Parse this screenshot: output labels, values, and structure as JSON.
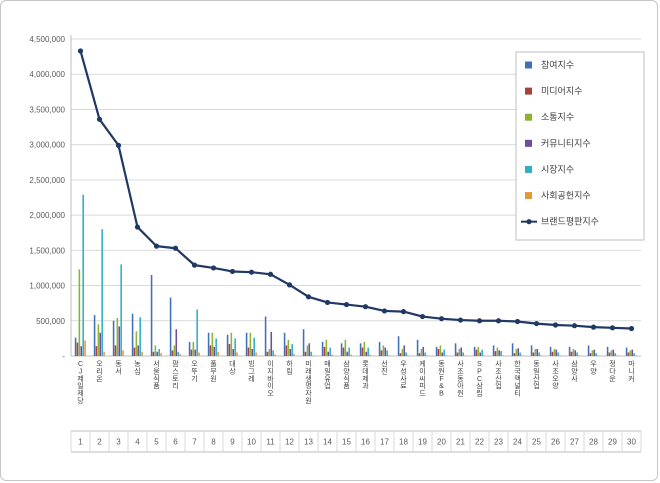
{
  "chart_data": {
    "type": "bar+line",
    "title": "",
    "xlabel": "",
    "ylabel": "",
    "grid": true,
    "legend_position": "right-top",
    "y_axis": {
      "min": 0,
      "max": 4500000,
      "step": 500000,
      "zero_label": "-"
    },
    "ranks": [
      1,
      2,
      3,
      4,
      5,
      6,
      7,
      8,
      9,
      10,
      11,
      12,
      13,
      14,
      15,
      16,
      17,
      18,
      19,
      20,
      21,
      22,
      23,
      24,
      25,
      26,
      27,
      28,
      29,
      30
    ],
    "categories": [
      "CJ제일제당",
      "오리온",
      "동서",
      "농심",
      "서울식품",
      "팜스토리",
      "오뚜기",
      "풀무원",
      "대상",
      "빙그레",
      "이지바이오",
      "하림",
      "미래생명자원",
      "매일유업",
      "삼양식품",
      "롯데제과",
      "선진",
      "우성사료",
      "케이씨피드",
      "동원F&B",
      "사조동아원",
      "SPC삼립",
      "사조산업",
      "한국맥널티",
      "동일산업",
      "사조오양",
      "삼양사",
      "우양",
      "정다운",
      "마니커"
    ],
    "bar_series": [
      {
        "name": "참여지수",
        "color": "#4170B8",
        "values": [
          260000,
          580000,
          500000,
          600000,
          1150000,
          830000,
          200000,
          330000,
          300000,
          330000,
          560000,
          330000,
          380000,
          200000,
          180000,
          180000,
          200000,
          280000,
          230000,
          130000,
          180000,
          130000,
          150000,
          180000,
          150000,
          130000,
          130000,
          150000,
          130000,
          120000
        ]
      },
      {
        "name": "미디어지수",
        "color": "#A8423A",
        "values": [
          190000,
          140000,
          150000,
          120000,
          60000,
          80000,
          90000,
          150000,
          170000,
          120000,
          60000,
          150000,
          60000,
          130000,
          120000,
          120000,
          80000,
          40000,
          40000,
          100000,
          50000,
          90000,
          70000,
          40000,
          50000,
          60000,
          60000,
          40000,
          50000,
          50000
        ]
      },
      {
        "name": "소통지수",
        "color": "#8CB332",
        "values": [
          1230000,
          450000,
          540000,
          350000,
          150000,
          150000,
          200000,
          330000,
          330000,
          330000,
          100000,
          230000,
          150000,
          230000,
          230000,
          200000,
          150000,
          100000,
          100000,
          150000,
          100000,
          130000,
          120000,
          100000,
          100000,
          100000,
          100000,
          80000,
          80000,
          80000
        ]
      },
      {
        "name": "커뮤니티지수",
        "color": "#6E4D9E",
        "values": [
          140000,
          330000,
          420000,
          150000,
          60000,
          380000,
          90000,
          130000,
          100000,
          100000,
          340000,
          100000,
          180000,
          60000,
          60000,
          60000,
          120000,
          150000,
          130000,
          50000,
          120000,
          50000,
          80000,
          110000,
          100000,
          90000,
          80000,
          90000,
          90000,
          90000
        ]
      },
      {
        "name": "시장지수",
        "color": "#2FAEC6",
        "values": [
          2290000,
          1800000,
          1300000,
          550000,
          100000,
          60000,
          660000,
          250000,
          250000,
          260000,
          80000,
          170000,
          60000,
          120000,
          120000,
          120000,
          80000,
          50000,
          50000,
          90000,
          50000,
          90000,
          70000,
          50000,
          50000,
          50000,
          50000,
          40000,
          40000,
          40000
        ]
      },
      {
        "name": "사회공헌지수",
        "color": "#E29A38",
        "values": [
          220000,
          60000,
          80000,
          60000,
          40000,
          30000,
          50000,
          60000,
          50000,
          50000,
          20000,
          30000,
          10000,
          20000,
          20000,
          20000,
          10000,
          10000,
          10000,
          10000,
          10000,
          10000,
          10000,
          10000,
          10000,
          10000,
          10000,
          10000,
          10000,
          10000
        ]
      }
    ],
    "line_series": {
      "name": "브랜드평판지수",
      "color": "#1F3864",
      "values": [
        4330000,
        3360000,
        2990000,
        1830000,
        1560000,
        1530000,
        1290000,
        1250000,
        1200000,
        1190000,
        1160000,
        1010000,
        840000,
        760000,
        730000,
        700000,
        640000,
        630000,
        560000,
        530000,
        510000,
        500000,
        500000,
        490000,
        460000,
        440000,
        430000,
        410000,
        400000,
        390000
      ]
    },
    "colors": {
      "grid": "#D9D9D9",
      "axis": "#BFBFBF",
      "tick_text": "#595959",
      "category_text": "#404040",
      "legend_border": "#BFBFBF"
    }
  }
}
